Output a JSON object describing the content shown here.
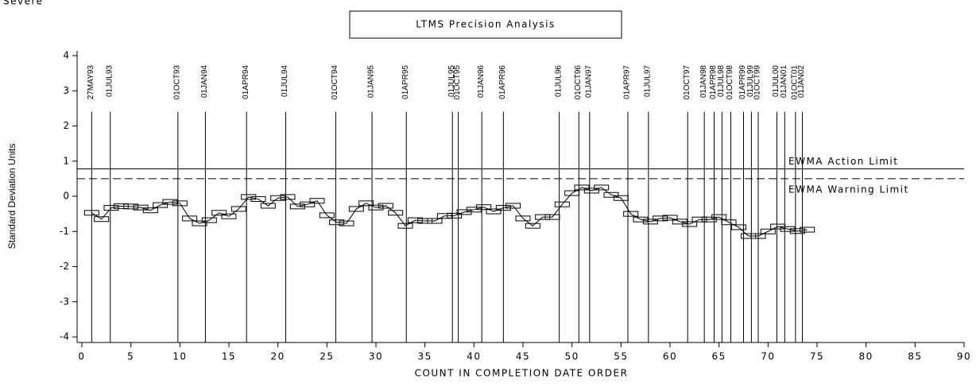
{
  "chart_data": {
    "type": "line",
    "corner_text": "Severe",
    "title": "LTMS Precision Analysis",
    "xlabel": "COUNT IN COMPLETION DATE ORDER",
    "ylabel": "Standard Deviation Units",
    "xlim": [
      0,
      90
    ],
    "xticks": [
      0,
      5,
      10,
      15,
      20,
      25,
      30,
      35,
      40,
      45,
      50,
      55,
      60,
      65,
      70,
      75,
      80,
      85,
      90
    ],
    "ylim": [
      -4,
      4
    ],
    "yticks": [
      -4,
      -3,
      -2,
      -1,
      0,
      1,
      2,
      3,
      4
    ],
    "color": "#000000",
    "x": [
      1,
      2,
      3,
      4,
      5,
      6,
      7,
      8,
      9,
      10,
      11,
      12,
      13,
      14,
      15,
      16,
      17,
      18,
      19,
      20,
      21,
      22,
      23,
      24,
      25,
      26,
      27,
      28,
      29,
      30,
      31,
      32,
      33,
      34,
      35,
      36,
      37,
      38,
      39,
      40,
      41,
      42,
      43,
      44,
      45,
      46,
      47,
      48,
      49,
      50,
      51,
      52,
      53,
      54,
      55,
      56,
      57,
      58,
      59,
      60,
      61,
      62,
      63,
      64,
      65,
      66,
      67,
      68,
      69,
      70,
      71,
      72,
      73,
      74
    ],
    "values": [
      -0.47,
      -0.65,
      -0.33,
      -0.28,
      -0.29,
      -0.32,
      -0.4,
      -0.25,
      -0.16,
      -0.2,
      -0.63,
      -0.77,
      -0.68,
      -0.47,
      -0.57,
      -0.36,
      -0.02,
      -0.08,
      -0.27,
      -0.05,
      -0.02,
      -0.29,
      -0.23,
      -0.13,
      -0.54,
      -0.74,
      -0.77,
      -0.36,
      -0.2,
      -0.32,
      -0.27,
      -0.47,
      -0.84,
      -0.68,
      -0.7,
      -0.7,
      -0.56,
      -0.55,
      -0.45,
      -0.38,
      -0.31,
      -0.43,
      -0.33,
      -0.27,
      -0.63,
      -0.84,
      -0.59,
      -0.59,
      -0.23,
      0.09,
      0.25,
      0.16,
      0.25,
      0.04,
      -0.05,
      -0.5,
      -0.66,
      -0.72,
      -0.63,
      -0.61,
      -0.72,
      -0.79,
      -0.66,
      -0.66,
      -0.59,
      -0.74,
      -0.88,
      -1.13,
      -1.13,
      -1.0,
      -0.86,
      -0.93,
      -0.99,
      -0.95
    ],
    "limits": [
      {
        "name": "EWMA Action Limit",
        "value": 0.78,
        "style": "solid"
      },
      {
        "name": "EWMA Warning Limit",
        "value": 0.5,
        "style": "dashed"
      }
    ],
    "reference_lines": [
      {
        "x": 1,
        "label": "27MAY93"
      },
      {
        "x": 2.9,
        "label": "01JUL93"
      },
      {
        "x": 9.8,
        "label": "01OCT93"
      },
      {
        "x": 12.6,
        "label": "01JAN94"
      },
      {
        "x": 16.8,
        "label": "01APR94"
      },
      {
        "x": 20.8,
        "label": "01JUL94"
      },
      {
        "x": 25.9,
        "label": "01OCT94"
      },
      {
        "x": 29.6,
        "label": "01JAN95"
      },
      {
        "x": 33.1,
        "label": "01APR95"
      },
      {
        "x": 37.8,
        "label": "01JUL95"
      },
      {
        "x": 38.4,
        "label": "01OCT95"
      },
      {
        "x": 40.8,
        "label": "01JAN96"
      },
      {
        "x": 43,
        "label": "01APR96"
      },
      {
        "x": 48.7,
        "label": "01JUL96"
      },
      {
        "x": 50.7,
        "label": "01OCT96"
      },
      {
        "x": 51.8,
        "label": "01JAN97"
      },
      {
        "x": 55.7,
        "label": "01APR97"
      },
      {
        "x": 57.8,
        "label": "01JUL97"
      },
      {
        "x": 61.8,
        "label": "01OCT97"
      },
      {
        "x": 63.5,
        "label": "01JAN98"
      },
      {
        "x": 64.5,
        "label": "01APR98"
      },
      {
        "x": 65.3,
        "label": "01JUL98"
      },
      {
        "x": 66.2,
        "label": "01OCT98"
      },
      {
        "x": 67.5,
        "label": "01APR99"
      },
      {
        "x": 68.3,
        "label": "01JUL99"
      },
      {
        "x": 69,
        "label": "01OCT99"
      },
      {
        "x": 70.9,
        "label": "01JUL00"
      },
      {
        "x": 71.7,
        "label": "01JAN01"
      },
      {
        "x": 72.8,
        "label": "01OCT01"
      },
      {
        "x": 73.5,
        "label": "01JAN02"
      }
    ]
  }
}
